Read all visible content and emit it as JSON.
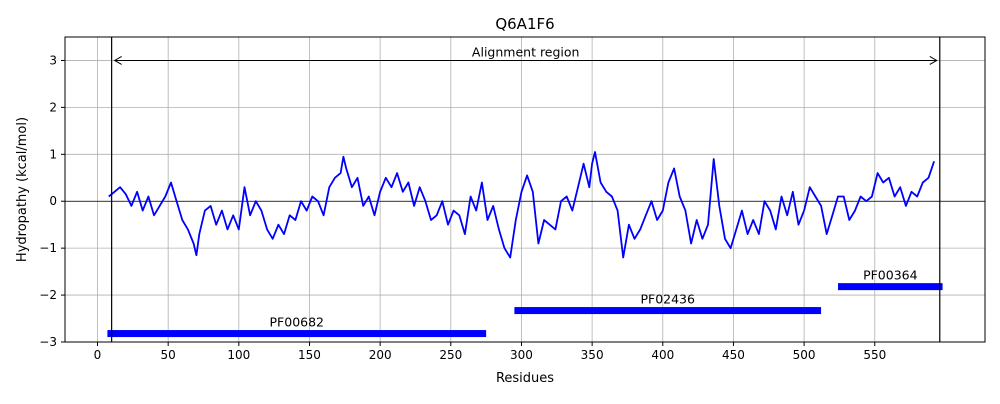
{
  "chart_data": {
    "type": "line",
    "title": "Q6A1F6",
    "xlabel": "Residues",
    "ylabel": "Hydropathy (kcal/mol)",
    "xlim": [
      -23,
      628
    ],
    "ylim": [
      -3,
      3.5
    ],
    "xticks": [
      0,
      50,
      100,
      150,
      200,
      250,
      300,
      350,
      400,
      450,
      500,
      550
    ],
    "yticks": [
      -3,
      -2,
      -1,
      0,
      1,
      2,
      3
    ],
    "grid": true,
    "colors": {
      "series": "#0000ff",
      "domains": "#0000ff"
    },
    "alignment": {
      "label": "Alignment region",
      "start": 10,
      "end": 596,
      "arrow_y": 3
    },
    "domains": [
      {
        "label": "PF00682",
        "start": 7,
        "end": 275,
        "y": -2.82
      },
      {
        "label": "PF02436",
        "start": 295,
        "end": 512,
        "y": -2.33
      },
      {
        "label": "PF00364",
        "start": 524,
        "end": 598,
        "y": -1.82
      }
    ],
    "series": [
      {
        "x": [
          8,
          12,
          16,
          20,
          24,
          28,
          32,
          36,
          40,
          44,
          48,
          52,
          56,
          60,
          64,
          68,
          70,
          72,
          76,
          80,
          84,
          88,
          92,
          96,
          100,
          104,
          108,
          112,
          116,
          120,
          124,
          128,
          132,
          136,
          140,
          144,
          148,
          152,
          156,
          160,
          164,
          168,
          172,
          174,
          176,
          180,
          184,
          188,
          192,
          196,
          200,
          204,
          208,
          212,
          216,
          220,
          224,
          228,
          232,
          236,
          240,
          244,
          248,
          252,
          256,
          260,
          264,
          268,
          272,
          276,
          280,
          284,
          288,
          292,
          296,
          300,
          304,
          308,
          312,
          316,
          320,
          324,
          328,
          332,
          336,
          340,
          344,
          348,
          350,
          352,
          356,
          360,
          364,
          368,
          372,
          376,
          380,
          384,
          388,
          392,
          396,
          400,
          404,
          408,
          412,
          416,
          420,
          424,
          428,
          432,
          436,
          440,
          444,
          448,
          452,
          456,
          460,
          464,
          468,
          472,
          476,
          480,
          484,
          488,
          492,
          496,
          500,
          504,
          508,
          512,
          516,
          520,
          524,
          528,
          532,
          536,
          540,
          544,
          548,
          552,
          556,
          560,
          564,
          568,
          572,
          576,
          580,
          584,
          588,
          592
        ],
        "values": [
          0.1,
          0.2,
          0.3,
          0.15,
          -0.1,
          0.2,
          -0.2,
          0.1,
          -0.3,
          -0.1,
          0.1,
          0.4,
          0.0,
          -0.4,
          -0.6,
          -0.9,
          -1.15,
          -0.7,
          -0.2,
          -0.1,
          -0.5,
          -0.2,
          -0.6,
          -0.3,
          -0.6,
          0.3,
          -0.3,
          0.0,
          -0.2,
          -0.6,
          -0.8,
          -0.5,
          -0.7,
          -0.3,
          -0.4,
          0.0,
          -0.2,
          0.1,
          0.0,
          -0.3,
          0.3,
          0.5,
          0.6,
          0.95,
          0.7,
          0.3,
          0.5,
          -0.1,
          0.1,
          -0.3,
          0.2,
          0.5,
          0.3,
          0.6,
          0.2,
          0.4,
          -0.1,
          0.3,
          0.0,
          -0.4,
          -0.3,
          0.0,
          -0.5,
          -0.2,
          -0.3,
          -0.7,
          0.1,
          -0.2,
          0.4,
          -0.4,
          -0.1,
          -0.6,
          -1.0,
          -1.2,
          -0.4,
          0.2,
          0.55,
          0.2,
          -0.9,
          -0.4,
          -0.5,
          -0.6,
          0.0,
          0.1,
          -0.2,
          0.3,
          0.8,
          0.3,
          0.8,
          1.05,
          0.4,
          0.2,
          0.1,
          -0.2,
          -1.2,
          -0.5,
          -0.8,
          -0.6,
          -0.3,
          0.0,
          -0.4,
          -0.2,
          0.4,
          0.7,
          0.1,
          -0.2,
          -0.9,
          -0.4,
          -0.8,
          -0.5,
          0.9,
          -0.1,
          -0.8,
          -1.0,
          -0.6,
          -0.2,
          -0.7,
          -0.4,
          -0.7,
          0.0,
          -0.2,
          -0.6,
          0.1,
          -0.3,
          0.2,
          -0.5,
          -0.2,
          0.3,
          0.1,
          -0.1,
          -0.7,
          -0.3,
          0.1,
          0.1,
          -0.4,
          -0.2,
          0.1,
          0.0,
          0.1,
          0.6,
          0.4,
          0.5,
          0.1,
          0.3,
          -0.1,
          0.2,
          0.1,
          0.4,
          0.5,
          0.85
        ]
      }
    ]
  }
}
